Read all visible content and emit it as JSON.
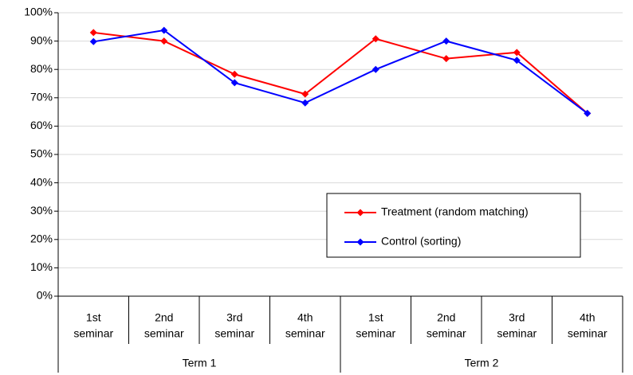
{
  "chart_data": {
    "type": "line",
    "categories": [
      [
        "1st",
        "seminar"
      ],
      [
        "2nd",
        "seminar"
      ],
      [
        "3rd",
        "seminar"
      ],
      [
        "4th",
        "seminar"
      ],
      [
        "1st",
        "seminar"
      ],
      [
        "2nd",
        "seminar"
      ],
      [
        "3rd",
        "seminar"
      ],
      [
        "4th",
        "seminar"
      ]
    ],
    "groups": [
      "Term 1",
      "Term 2"
    ],
    "series": [
      {
        "name": "Treatment (random matching)",
        "color": "#ff0000",
        "values": [
          93,
          90,
          78.3,
          71.3,
          90.8,
          83.8,
          86,
          64.5
        ]
      },
      {
        "name": "Control (sorting)",
        "color": "#0000ff",
        "values": [
          89.8,
          93.8,
          75.3,
          68.2,
          80,
          90,
          83.2,
          64.5
        ]
      }
    ],
    "ylim": [
      0,
      100
    ],
    "yticks": [
      {
        "value": 0,
        "label": "0%"
      },
      {
        "value": 10,
        "label": "10%"
      },
      {
        "value": 20,
        "label": "20%"
      },
      {
        "value": 30,
        "label": "30%"
      },
      {
        "value": 40,
        "label": "40%"
      },
      {
        "value": 50,
        "label": "50%"
      },
      {
        "value": 60,
        "label": "60%"
      },
      {
        "value": 70,
        "label": "70%"
      },
      {
        "value": 80,
        "label": "80%"
      },
      {
        "value": 90,
        "label": "90%"
      },
      {
        "value": 100,
        "label": "100%"
      }
    ],
    "grid": true,
    "legend": "right"
  }
}
